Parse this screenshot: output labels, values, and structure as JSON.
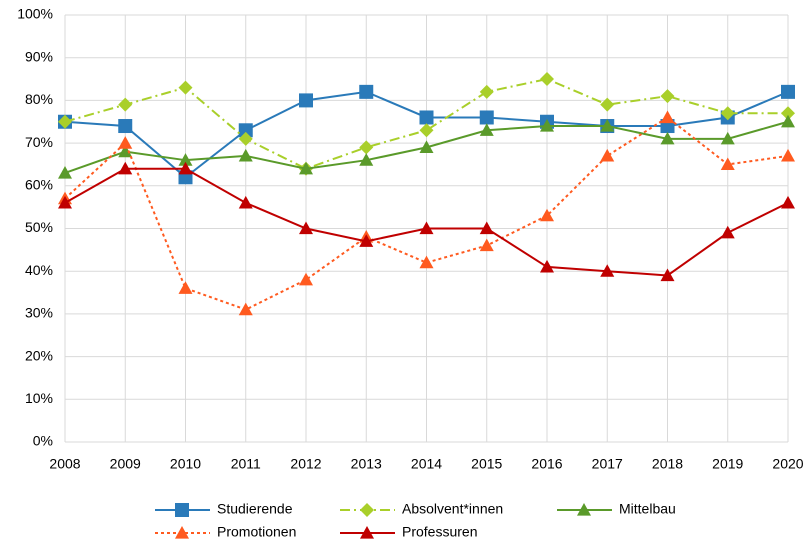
{
  "chart_data": {
    "type": "line",
    "categories": [
      "2008",
      "2009",
      "2010",
      "2011",
      "2012",
      "2013",
      "2014",
      "2015",
      "2016",
      "2017",
      "2018",
      "2019",
      "2020"
    ],
    "series": [
      {
        "name": "Studierende",
        "color": "#2a7ab9",
        "marker": "square",
        "line_style": "solid",
        "values": [
          75,
          74,
          62,
          73,
          80,
          82,
          76,
          76,
          75,
          74,
          74,
          76,
          82
        ]
      },
      {
        "name": "Absolvent*innen",
        "color": "#a9cf2a",
        "marker": "diamond",
        "line_style": "dash-dot",
        "values": [
          75,
          79,
          83,
          71,
          64,
          69,
          73,
          82,
          85,
          79,
          81,
          77,
          77
        ]
      },
      {
        "name": "Mittelbau",
        "color": "#5a9a2a",
        "marker": "triangle",
        "line_style": "solid",
        "values": [
          63,
          68,
          66,
          67,
          64,
          66,
          69,
          73,
          74,
          74,
          71,
          71,
          75
        ]
      },
      {
        "name": "Promotionen",
        "color": "#ff5a1f",
        "marker": "triangle",
        "line_style": "dotted",
        "values": [
          57,
          70,
          36,
          31,
          38,
          48,
          42,
          46,
          53,
          67,
          76,
          65,
          67
        ]
      },
      {
        "name": "Professuren",
        "color": "#c00000",
        "marker": "triangle",
        "line_style": "solid",
        "values": [
          56,
          64,
          64,
          56,
          50,
          47,
          50,
          50,
          41,
          40,
          39,
          49,
          56
        ]
      }
    ],
    "ylim": [
      0,
      100
    ],
    "yticks": [
      {
        "value": 0,
        "label": "0%"
      },
      {
        "value": 10,
        "label": "10%"
      },
      {
        "value": 20,
        "label": "20%"
      },
      {
        "value": 30,
        "label": "30%"
      },
      {
        "value": 40,
        "label": "40%"
      },
      {
        "value": 50,
        "label": "50%"
      },
      {
        "value": 60,
        "label": "60%"
      },
      {
        "value": 70,
        "label": "70%"
      },
      {
        "value": 80,
        "label": "80%"
      },
      {
        "value": 90,
        "label": "90%"
      },
      {
        "value": 100,
        "label": "100%"
      }
    ],
    "grid": true,
    "legend": "bottom"
  }
}
